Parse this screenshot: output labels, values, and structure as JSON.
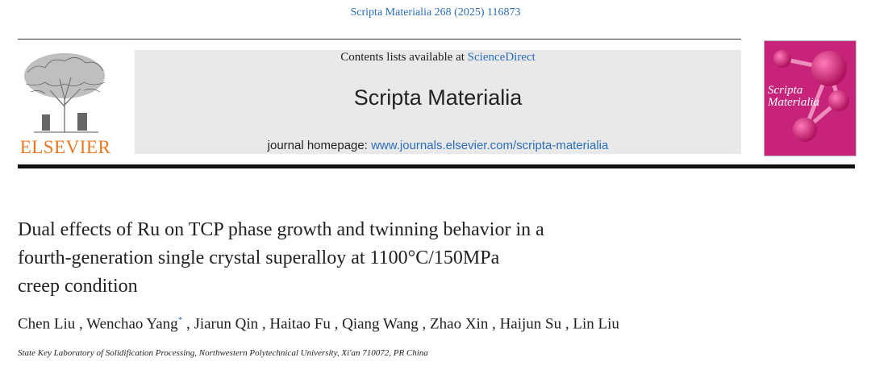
{
  "header": {
    "citation": "Scripta Materialia 268 (2025) 116873"
  },
  "publisher": {
    "name": "ELSEVIER",
    "logo_icon": "elsevier-tree-logo",
    "brand_color": "#e87722"
  },
  "banner": {
    "contents_prefix": "Contents lists available at ",
    "contents_link": "ScienceDirect",
    "journal_name": "Scripta Materialia",
    "homepage_prefix": "journal homepage: ",
    "homepage_link": "www.journals.elsevier.com/scripta-materialia"
  },
  "cover": {
    "title_line1": "Scripta",
    "title_line2": "Materialia",
    "color": "#c8237a"
  },
  "article": {
    "title_line1": "Dual effects of Ru on TCP phase growth and twinning behavior in a",
    "title_line2": "fourth-generation single crystal superalloy at 1100°C/150MPa",
    "title_line3": "creep condition",
    "authors": [
      {
        "name": "Chen Liu",
        "sep": " , "
      },
      {
        "name": "Wenchao Yang",
        "star": "*",
        "sep": " , "
      },
      {
        "name": "Jiarun Qin",
        "sep": " , "
      },
      {
        "name": "Haitao Fu",
        "sep": " , "
      },
      {
        "name": "Qiang Wang",
        "sep": " , "
      },
      {
        "name": "Zhao Xin",
        "sep": " , "
      },
      {
        "name": "Haijun Su",
        "sep": " , "
      },
      {
        "name": "Lin Liu",
        "sep": ""
      }
    ],
    "affiliation": "State Key Laboratory of Solidification Processing, Northwestern Polytechnical University, Xi'an 710072, PR China"
  }
}
